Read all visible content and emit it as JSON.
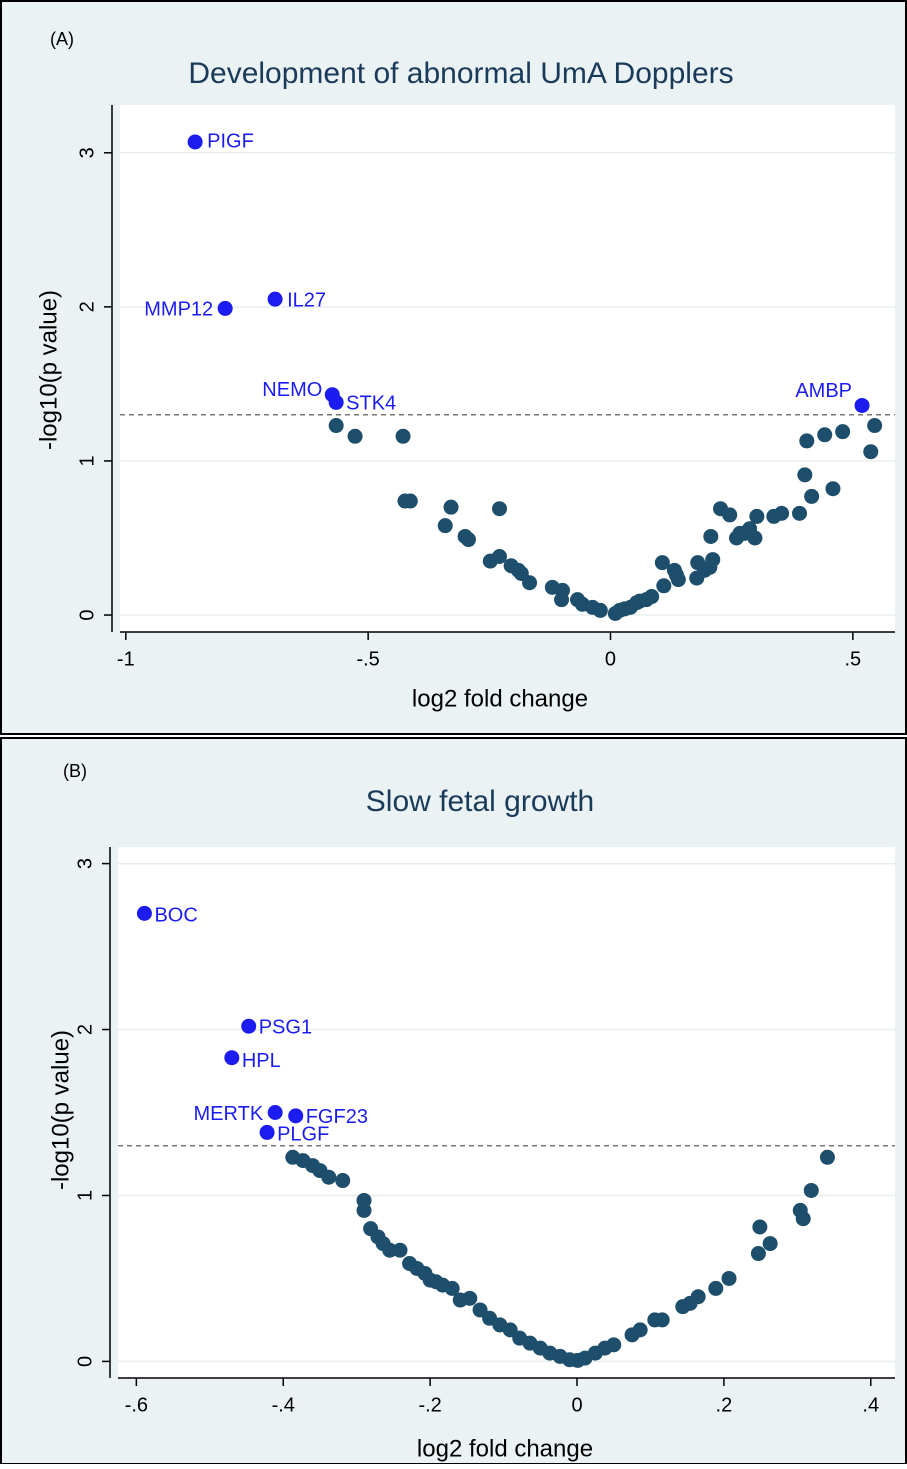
{
  "chart_data": [
    {
      "type": "scatter",
      "panel_label": "(A)",
      "title": "Development of abnormal UmA Dopplers",
      "x_label": "log2 fold change",
      "y_label": "-log10(p value)",
      "xlim": [
        -1.012,
        0.587
      ],
      "ylim": [
        -0.11,
        3.31
      ],
      "xticks": [
        -1,
        {
          "value": -0.5,
          "label": "-.5"
        },
        0,
        {
          "value": 0.5,
          "label": ".5"
        }
      ],
      "yticks": [
        0,
        1,
        2,
        3
      ],
      "grid": true,
      "reference_line": 1.3,
      "series": [
        {
          "color": "#1c1cf0",
          "x": [
            -0.857,
            -0.795,
            -0.692,
            -0.574,
            -0.566,
            0.519
          ],
          "y": [
            3.07,
            1.99,
            2.05,
            1.43,
            1.38,
            1.36
          ],
          "labels": [
            "PIGF",
            "MMP12",
            "IL27",
            "NEMO",
            "STK4",
            "AMBP"
          ]
        },
        {
          "color": "#1d4e6b",
          "x": [
            -0.566,
            -0.527,
            -0.428,
            -0.424,
            -0.413,
            -0.329,
            -0.341,
            -0.3,
            -0.293,
            -0.229,
            -0.248,
            -0.229,
            -0.205,
            -0.19,
            -0.184,
            -0.167,
            -0.12,
            -0.099,
            -0.101,
            -0.068,
            -0.058,
            -0.037,
            -0.021,
            0.01,
            0.019,
            0.029,
            0.041,
            0.054,
            0.06,
            0.074,
            0.085,
            0.11,
            0.107,
            0.132,
            0.136,
            0.14,
            0.178,
            0.18,
            0.194,
            0.205,
            0.211,
            0.207,
            0.227,
            0.246,
            0.26,
            0.267,
            0.277,
            0.287,
            0.298,
            0.302,
            0.337,
            0.353,
            0.39,
            0.401,
            0.405,
            0.415,
            0.442,
            0.459,
            0.479,
            0.545,
            0.537
          ],
          "y": [
            1.23,
            1.16,
            1.16,
            0.74,
            0.74,
            0.7,
            0.58,
            0.51,
            0.49,
            0.69,
            0.35,
            0.38,
            0.32,
            0.29,
            0.27,
            0.21,
            0.18,
            0.16,
            0.1,
            0.1,
            0.07,
            0.05,
            0.03,
            0.01,
            0.03,
            0.04,
            0.05,
            0.08,
            0.09,
            0.1,
            0.12,
            0.19,
            0.34,
            0.29,
            0.26,
            0.23,
            0.24,
            0.34,
            0.29,
            0.31,
            0.36,
            0.51,
            0.69,
            0.65,
            0.5,
            0.53,
            0.53,
            0.56,
            0.5,
            0.64,
            0.64,
            0.66,
            0.66,
            0.91,
            1.13,
            0.77,
            1.17,
            0.82,
            1.19,
            1.23,
            1.06
          ]
        }
      ]
    },
    {
      "type": "scatter",
      "panel_label": "(B)",
      "title": "Slow fetal growth",
      "x_label": "log2 fold change",
      "y_label": "-log10(p value)",
      "xlim": [
        -0.625,
        0.433
      ],
      "ylim": [
        -0.1,
        3.1
      ],
      "xticks": [
        {
          "value": -0.6,
          "label": "-.6"
        },
        {
          "value": -0.4,
          "label": "-.4"
        },
        {
          "value": -0.2,
          "label": "-.2"
        },
        0,
        {
          "value": 0.2,
          "label": ".2"
        },
        {
          "value": 0.4,
          "label": ".4"
        }
      ],
      "yticks": [
        0,
        1,
        2,
        3
      ],
      "grid": true,
      "reference_line": 1.3,
      "series": [
        {
          "color": "#1c1cf0",
          "x": [
            -0.589,
            -0.447,
            -0.47,
            -0.411,
            -0.383,
            -0.422
          ],
          "y": [
            2.7,
            2.02,
            1.83,
            1.5,
            1.48,
            1.38
          ],
          "labels": [
            "BOC",
            "PSG1",
            "HPL",
            "MERTK",
            "FGF23",
            "PLGF"
          ]
        },
        {
          "color": "#1d4e6b",
          "x": [
            -0.387,
            -0.373,
            -0.36,
            -0.35,
            -0.338,
            -0.319,
            -0.29,
            -0.29,
            -0.281,
            -0.271,
            -0.264,
            -0.255,
            -0.241,
            -0.228,
            -0.218,
            -0.207,
            -0.2,
            -0.192,
            -0.183,
            -0.17,
            -0.159,
            -0.146,
            -0.132,
            -0.119,
            -0.105,
            -0.091,
            -0.078,
            -0.064,
            -0.05,
            -0.037,
            -0.023,
            -0.01,
            0.001,
            0.011,
            0.025,
            0.038,
            0.05,
            0.075,
            0.086,
            0.106,
            0.116,
            0.144,
            0.154,
            0.165,
            0.189,
            0.207,
            0.247,
            0.249,
            0.263,
            0.304,
            0.308,
            0.319,
            0.341
          ],
          "y": [
            1.23,
            1.21,
            1.18,
            1.15,
            1.11,
            1.09,
            0.97,
            0.91,
            0.8,
            0.75,
            0.71,
            0.67,
            0.67,
            0.59,
            0.56,
            0.53,
            0.49,
            0.48,
            0.46,
            0.44,
            0.37,
            0.38,
            0.31,
            0.26,
            0.22,
            0.19,
            0.14,
            0.11,
            0.08,
            0.05,
            0.03,
            0.01,
            0.006,
            0.02,
            0.05,
            0.08,
            0.1,
            0.16,
            0.19,
            0.25,
            0.25,
            0.33,
            0.35,
            0.39,
            0.44,
            0.5,
            0.65,
            0.81,
            0.71,
            0.91,
            0.86,
            1.03,
            1.23
          ]
        }
      ]
    }
  ]
}
